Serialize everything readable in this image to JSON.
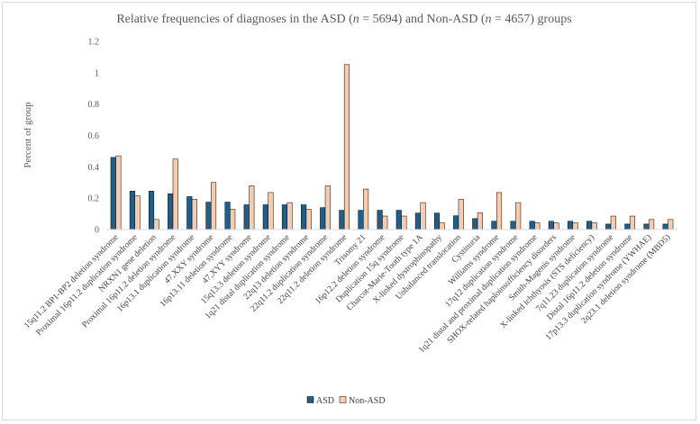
{
  "chart_data": {
    "type": "bar",
    "title_parts": [
      "Relative frequencies of diagnoses in the ASD (",
      "n",
      " = 5694) and Non-ASD (",
      "n",
      " = 4657) groups"
    ],
    "ylabel": "Percent of group",
    "xlabel": "",
    "ylim": [
      0,
      1.2
    ],
    "yticks": [
      0,
      0.2,
      0.4,
      0.6,
      0.8,
      1,
      1.2
    ],
    "ytick_labels": [
      "0",
      "0.2",
      "0.4",
      "0.6",
      "0.8",
      "1",
      "1.2"
    ],
    "grid": false,
    "legend_position": "bottom",
    "categories": [
      "15q11.2 BP1-BP2 deletion syndrome",
      "Proximal 16p11.2 duplication syndrome",
      "NRXN1 gene deletion",
      "Proximal 16p11.2 deletion syndrome",
      "16p13.1 duplication syndrome",
      "47,XXY syndrome",
      "16p13.11 deletion syndrome",
      "47,XYY syndrome",
      "15q13.3 deletion syndrome",
      "1q21 distal duplication syndrome",
      "22q13 deletion syndrome",
      "22q11.2 duplication syndrome",
      "22q11.2 deletion syndrome",
      "Trisomy 21",
      "16p12.2 deletion syndrome",
      "Duplication 15q syndrome",
      "Charcot-Marie-Tooth type 1A",
      "X-linked dystrophinopathy",
      "Unbalanced translocation",
      "Cystinuria",
      "Williams syndrome",
      "17q12 duplication syndrome",
      "1q21 distal and proximal duplication syndrome",
      "SHOX-related haploinsufficiency disorders",
      "Smith-Magenis syndrome",
      "X-linked ichthyosis (STS deficiency)",
      "7q11.23 duplication syndrome",
      "Distal 16p11.2 deletion syndrome",
      "17p13.3 duplication syndrome (YWHAE)",
      "2q23.1 deletion syndrome (MBD5)"
    ],
    "series": [
      {
        "name": "ASD",
        "color": "#1f5f8b",
        "values": [
          0.46,
          0.245,
          0.245,
          0.228,
          0.21,
          0.175,
          0.175,
          0.158,
          0.158,
          0.158,
          0.158,
          0.14,
          0.123,
          0.123,
          0.123,
          0.123,
          0.105,
          0.105,
          0.088,
          0.07,
          0.053,
          0.053,
          0.053,
          0.053,
          0.053,
          0.053,
          0.035,
          0.035,
          0.035,
          0.035
        ]
      },
      {
        "name": "Non-ASD",
        "color": "#f8cbad",
        "values": [
          0.47,
          0.215,
          0.064,
          0.45,
          0.193,
          0.3,
          0.129,
          0.279,
          0.236,
          0.172,
          0.129,
          0.279,
          1.052,
          0.258,
          0.086,
          0.086,
          0.172,
          0.043,
          0.193,
          0.107,
          0.236,
          0.172,
          0.043,
          0.043,
          0.043,
          0.043,
          0.086,
          0.086,
          0.064,
          0.064
        ]
      }
    ]
  }
}
